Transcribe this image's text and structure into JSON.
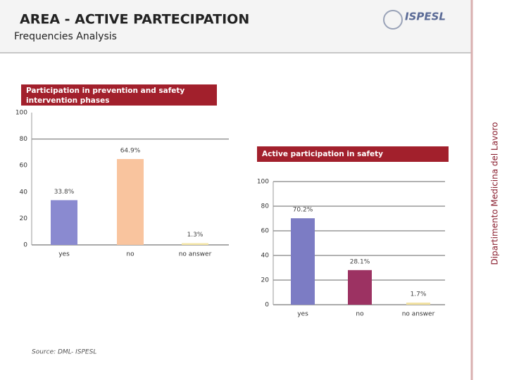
{
  "header": {
    "title": "AREA - ACTIVE PARTECIPATION",
    "subtitle": "Frequencies Analysis"
  },
  "logo": "ISPESL",
  "side_label": "Dipartimento Medicina del Lavoro",
  "source": "Source: DML- ISPESL",
  "chart_data": [
    {
      "type": "bar",
      "title": "Participation in prevention and safety intervention phases",
      "categories": [
        "yes",
        "no",
        "no answer"
      ],
      "values": [
        33.8,
        64.9,
        1.3
      ],
      "value_labels": [
        "33.8%",
        "64.9%",
        "1.3%"
      ],
      "colors": [
        "#8a8ad0",
        "#f9c49e",
        "#f6e7a6"
      ],
      "ylim": [
        0,
        100
      ],
      "yticks": [
        0,
        20,
        40,
        60,
        80,
        100
      ],
      "grid": false
    },
    {
      "type": "bar",
      "title": "Active participation in safety",
      "categories": [
        "yes",
        "no",
        "no answer"
      ],
      "values": [
        70.2,
        28.1,
        1.7
      ],
      "value_labels": [
        "70.2%",
        "28.1%",
        "1.7%"
      ],
      "colors": [
        "#7c7cc4",
        "#9c3262",
        "#f2e2a2"
      ],
      "ylim": [
        0,
        100
      ],
      "yticks": [
        0,
        20,
        40,
        60,
        80,
        100
      ],
      "grid": true
    }
  ]
}
